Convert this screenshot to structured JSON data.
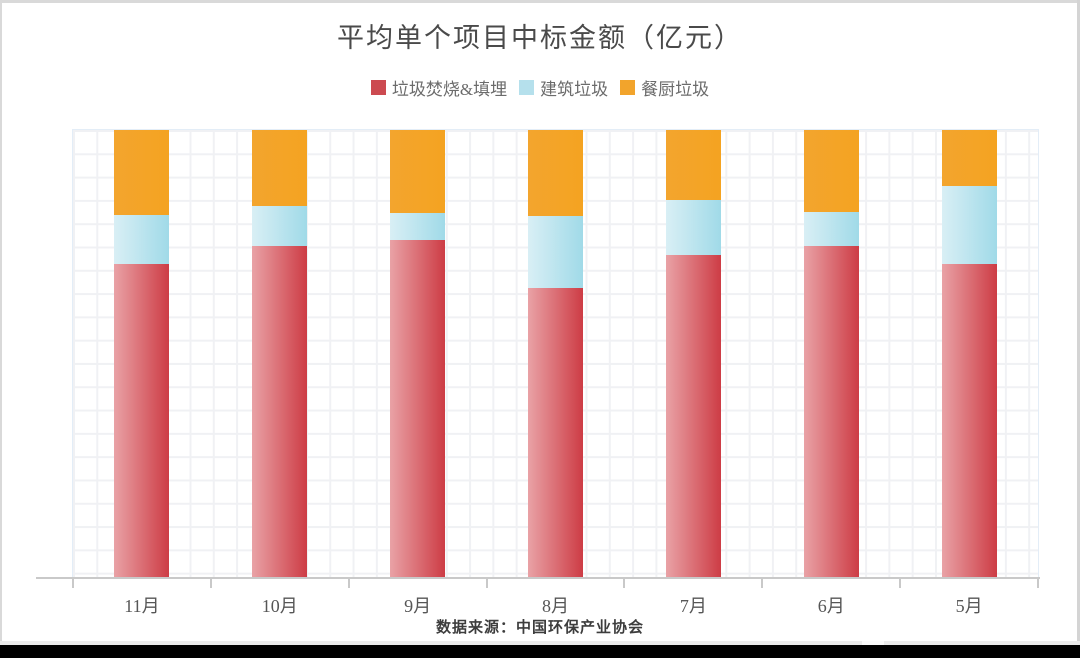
{
  "title": "平均单个项目中标金额（亿元）",
  "source_note": "数据来源：中国环保产业协会",
  "legend": {
    "items": [
      {
        "label": "垃圾焚烧&填埋",
        "color": "#cc4a50"
      },
      {
        "label": "建筑垃圾",
        "color": "#b5e0ec"
      },
      {
        "label": "餐厨垃圾",
        "color": "#f2a42c"
      }
    ]
  },
  "chart_data": {
    "type": "bar",
    "subtype": "stacked-100-percent",
    "title": "平均单个项目中标金额（亿元）",
    "xlabel": "",
    "ylabel": "",
    "grid": "fine graph-paper grid, light gray",
    "legend_position": "top-center",
    "categories": [
      "11月",
      "10月",
      "9月",
      "8月",
      "7月",
      "6月",
      "5月"
    ],
    "series": [
      {
        "name": "垃圾焚烧&填埋",
        "stack_order": "bottom",
        "gradient": [
          "#e9a2a6",
          "#cd3c45"
        ],
        "values_pct": [
          70.0,
          74.0,
          75.3,
          64.6,
          72.0,
          74.0,
          70.0
        ]
      },
      {
        "name": "建筑垃圾",
        "stack_order": "middle",
        "gradient": [
          "#d9eff5",
          "#a0dae8"
        ],
        "values_pct": [
          11.0,
          9.0,
          6.1,
          16.1,
          12.3,
          7.6,
          17.5
        ]
      },
      {
        "name": "餐厨垃圾",
        "stack_order": "top",
        "gradient": [
          "#f3a52e",
          "#f4a321"
        ],
        "values_pct": [
          19.0,
          17.0,
          18.6,
          19.3,
          15.7,
          18.4,
          12.5
        ]
      }
    ],
    "ylim_pct": [
      0,
      100
    ],
    "note": "all bars reach full height (100% stacked); no y-axis tick labels shown"
  }
}
